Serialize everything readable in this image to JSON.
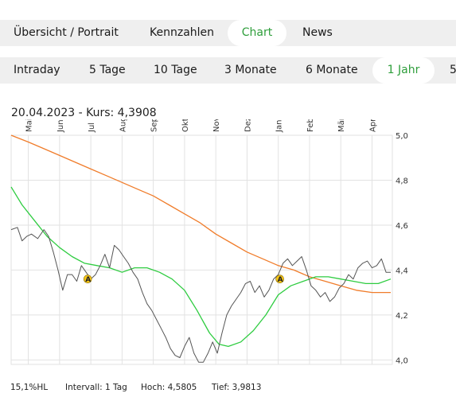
{
  "main_tabs": [
    {
      "label": "Übersicht / Portrait",
      "active": false
    },
    {
      "label": "Kennzahlen",
      "active": false
    },
    {
      "label": "Chart",
      "active": true
    },
    {
      "label": "News",
      "active": false
    }
  ],
  "period_tabs": [
    {
      "label": "Intraday",
      "active": false
    },
    {
      "label": "5 Tage",
      "active": false
    },
    {
      "label": "10 Tage",
      "active": false
    },
    {
      "label": "3 Monate",
      "active": false
    },
    {
      "label": "6 Monate",
      "active": false
    },
    {
      "label": "1 Jahr",
      "active": true
    },
    {
      "label": "5",
      "active": false
    }
  ],
  "quote_line": "20.04.2023  -  Kurs: 4,3908",
  "footer": {
    "hl": "15,1%HL",
    "interval": "Intervall: 1 Tag",
    "high": "Hoch: 4,5805",
    "low": "Tief: 3,9813"
  },
  "colors": {
    "accent": "#2e9e3b",
    "price_line": "#555555",
    "ma_green": "#2ecc40",
    "ma_orange": "#f07c2a",
    "marker_fill": "#f5c518",
    "grid": "#e2e2e2"
  },
  "chart_data": {
    "type": "line",
    "ytick_labels": [
      "4,0",
      "4,2",
      "4,4",
      "4,6",
      "4,8",
      "5,0"
    ],
    "xtick_labels": [
      "Mai",
      "Jun",
      "Jul",
      "Aug",
      "Sep",
      "Okt",
      "Nov",
      "Dez",
      "Jan",
      "Feb",
      "Mär",
      "Apr"
    ],
    "ylim": [
      3.98,
      5.0
    ],
    "x_unit": "month index (0 = start of Mai)",
    "x_range": [
      -0.55,
      11.65
    ],
    "series": [
      {
        "key": "price",
        "x": [
          -0.55,
          -0.35,
          -0.2,
          -0.05,
          0.1,
          0.3,
          0.5,
          0.65,
          0.8,
          0.95,
          1.1,
          1.25,
          1.4,
          1.55,
          1.7,
          1.85,
          2.0,
          2.15,
          2.3,
          2.45,
          2.6,
          2.75,
          2.9,
          3.05,
          3.2,
          3.35,
          3.5,
          3.65,
          3.8,
          3.95,
          4.1,
          4.25,
          4.4,
          4.55,
          4.7,
          4.85,
          5.0,
          5.15,
          5.3,
          5.45,
          5.6,
          5.75,
          5.9,
          6.05,
          6.2,
          6.35,
          6.5,
          6.65,
          6.8,
          6.95,
          7.1,
          7.25,
          7.4,
          7.55,
          7.7,
          7.85,
          8.0,
          8.15,
          8.3,
          8.45,
          8.6,
          8.75,
          8.9,
          9.05,
          9.2,
          9.35,
          9.5,
          9.65,
          9.8,
          9.95,
          10.1,
          10.25,
          10.4,
          10.55,
          10.7,
          10.85,
          11.0,
          11.15,
          11.3,
          11.45,
          11.6
        ],
        "y": [
          4.58,
          4.59,
          4.53,
          4.55,
          4.56,
          4.54,
          4.58,
          4.55,
          4.48,
          4.4,
          4.31,
          4.38,
          4.38,
          4.35,
          4.42,
          4.39,
          4.36,
          4.38,
          4.42,
          4.47,
          4.41,
          4.51,
          4.49,
          4.46,
          4.43,
          4.39,
          4.36,
          4.3,
          4.25,
          4.22,
          4.18,
          4.14,
          4.1,
          4.05,
          4.02,
          4.01,
          4.06,
          4.1,
          4.03,
          3.99,
          3.99,
          4.03,
          4.08,
          4.03,
          4.12,
          4.2,
          4.24,
          4.27,
          4.3,
          4.34,
          4.35,
          4.3,
          4.33,
          4.28,
          4.31,
          4.36,
          4.38,
          4.43,
          4.45,
          4.42,
          4.44,
          4.46,
          4.4,
          4.33,
          4.31,
          4.28,
          4.3,
          4.26,
          4.28,
          4.32,
          4.34,
          4.38,
          4.36,
          4.41,
          4.43,
          4.44,
          4.41,
          4.42,
          4.45,
          4.39,
          4.39
        ]
      },
      {
        "key": "ma_short",
        "x": [
          -0.55,
          -0.2,
          0.2,
          0.6,
          1.0,
          1.4,
          1.8,
          2.2,
          2.6,
          3.0,
          3.4,
          3.8,
          4.2,
          4.6,
          5.0,
          5.4,
          5.8,
          6.1,
          6.4,
          6.8,
          7.2,
          7.6,
          8.0,
          8.4,
          8.8,
          9.2,
          9.6,
          10.0,
          10.4,
          10.8,
          11.2,
          11.6
        ],
        "y": [
          4.77,
          4.69,
          4.62,
          4.55,
          4.5,
          4.46,
          4.43,
          4.42,
          4.41,
          4.39,
          4.41,
          4.41,
          4.39,
          4.36,
          4.31,
          4.22,
          4.12,
          4.07,
          4.06,
          4.08,
          4.13,
          4.2,
          4.29,
          4.33,
          4.35,
          4.37,
          4.37,
          4.36,
          4.35,
          4.34,
          4.34,
          4.36
        ]
      },
      {
        "key": "ma_long",
        "x": [
          -0.55,
          0.0,
          0.5,
          1.0,
          1.5,
          2.0,
          2.5,
          3.0,
          3.5,
          4.0,
          4.5,
          5.0,
          5.5,
          6.0,
          6.5,
          7.0,
          7.5,
          8.0,
          8.5,
          9.0,
          9.5,
          10.0,
          10.5,
          11.0,
          11.6
        ],
        "y": [
          5.0,
          4.97,
          4.94,
          4.91,
          4.88,
          4.85,
          4.82,
          4.79,
          4.76,
          4.73,
          4.69,
          4.65,
          4.61,
          4.56,
          4.52,
          4.48,
          4.45,
          4.42,
          4.4,
          4.37,
          4.35,
          4.33,
          4.31,
          4.3,
          4.3
        ]
      }
    ],
    "markers": [
      {
        "label": "A",
        "x": 1.9,
        "y": 4.36
      },
      {
        "label": "A",
        "x": 8.05,
        "y": 4.36
      }
    ],
    "grid": true
  }
}
